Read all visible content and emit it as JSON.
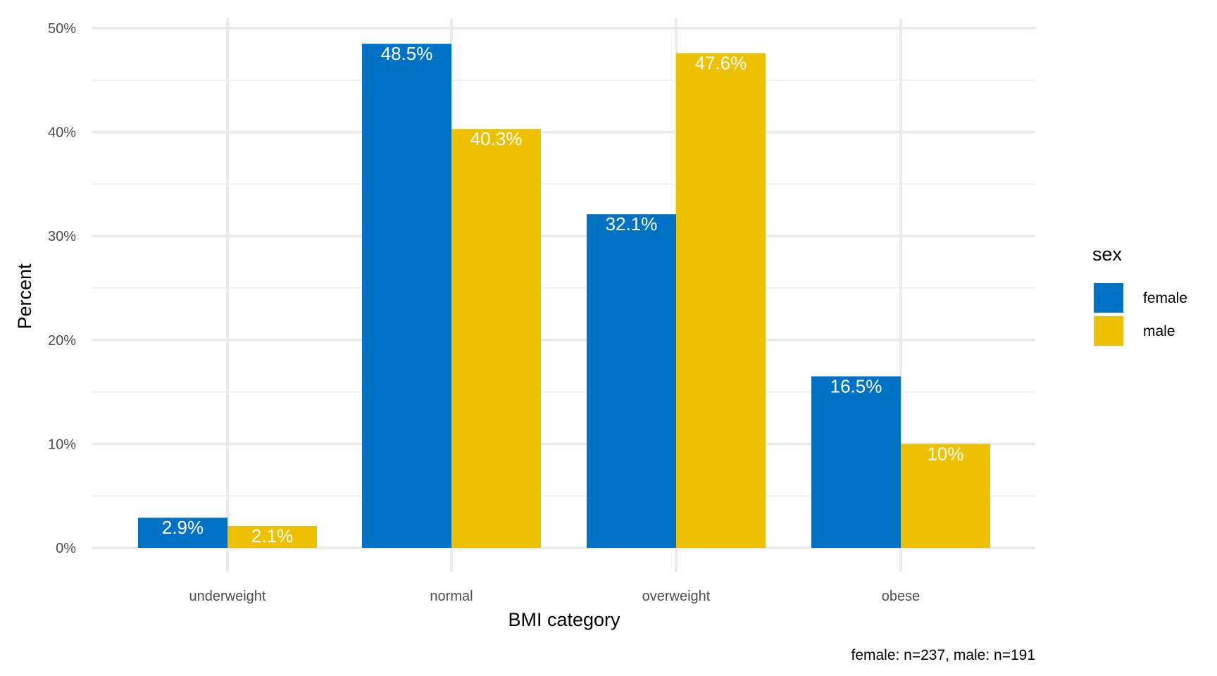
{
  "chart_data": {
    "type": "bar",
    "categories": [
      "underweight",
      "normal",
      "overweight",
      "obese"
    ],
    "series": [
      {
        "name": "female",
        "values": [
          2.9,
          48.5,
          32.1,
          16.5
        ],
        "labels": [
          "2.9%",
          "48.5%",
          "32.1%",
          "16.5%"
        ],
        "color": "#0072c6"
      },
      {
        "name": "male",
        "values": [
          2.1,
          40.3,
          47.6,
          10
        ],
        "labels": [
          "2.1%",
          "40.3%",
          "47.6%",
          "10%"
        ],
        "color": "#edc100"
      }
    ],
    "xlabel": "BMI category",
    "ylabel": "Percent",
    "ylim": [
      0,
      50
    ],
    "yticks": [
      0,
      10,
      20,
      30,
      40,
      50
    ],
    "ytick_labels": [
      "0%",
      "10%",
      "20%",
      "30%",
      "40%",
      "50%"
    ],
    "legend": {
      "title": "sex",
      "position": "right"
    },
    "caption": "female: n=237, male: n=191",
    "grid": true
  }
}
